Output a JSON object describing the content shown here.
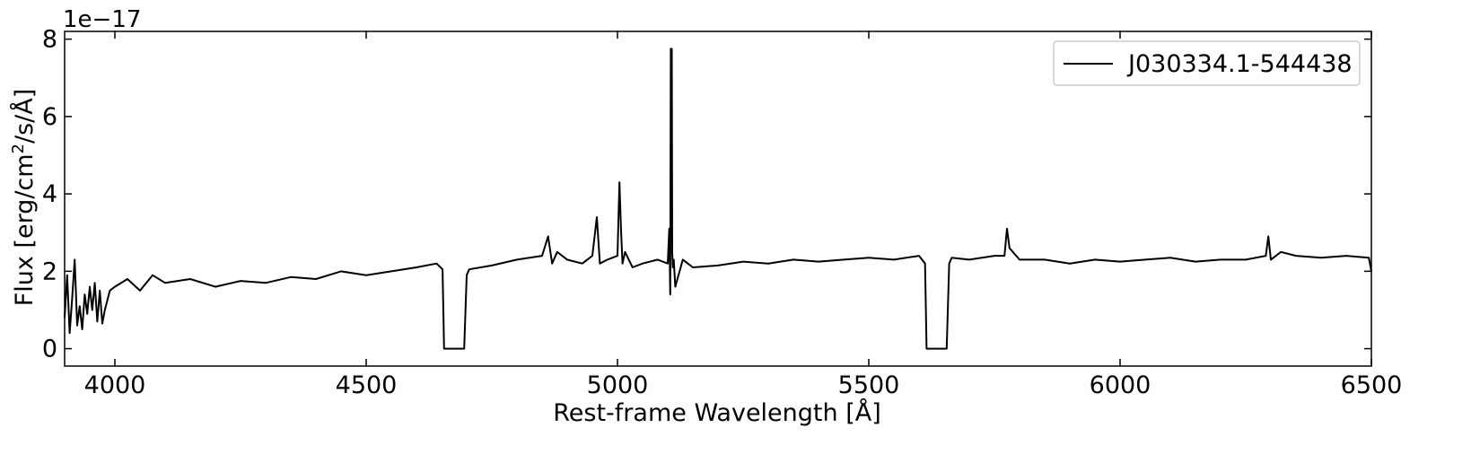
{
  "chart_data": {
    "type": "line",
    "title": "",
    "xlabel": "Rest-frame Wavelength [Å]",
    "ylabel_main": "Flux [erg/cm",
    "ylabel_sup": "2",
    "ylabel_tail": "/s/Å]",
    "offset_text": "1e−17",
    "xlim": [
      3900,
      6500
    ],
    "ylim": [
      -0.45,
      8.2
    ],
    "xticks": [
      4000,
      4500,
      5000,
      5500,
      6000,
      6500
    ],
    "xtick_labels": [
      "4000",
      "4500",
      "5000",
      "5500",
      "6000",
      "6500"
    ],
    "yticks": [
      0,
      2,
      4,
      6,
      8
    ],
    "ytick_labels": [
      "0",
      "2",
      "4",
      "6",
      "8"
    ],
    "grid": false,
    "legend_position": "top-right",
    "line_color": "#000000",
    "series": [
      {
        "name": "J030334.1-544438",
        "x": [
          3900,
          3905,
          3910,
          3915,
          3920,
          3925,
          3930,
          3935,
          3940,
          3945,
          3950,
          3955,
          3960,
          3965,
          3970,
          3975,
          3980,
          3990,
          4000,
          4025,
          4050,
          4075,
          4100,
          4150,
          4200,
          4250,
          4300,
          4350,
          4400,
          4450,
          4500,
          4550,
          4600,
          4640,
          4652,
          4655,
          4695,
          4700,
          4705,
          4750,
          4800,
          4850,
          4862,
          4870,
          4880,
          4900,
          4930,
          4950,
          4959,
          4965,
          4980,
          5000,
          5004,
          5007,
          5010,
          5015,
          5030,
          5050,
          5080,
          5100,
          5103,
          5105,
          5106,
          5107,
          5108,
          5109,
          5110,
          5112,
          5115,
          5130,
          5150,
          5200,
          5250,
          5300,
          5350,
          5400,
          5450,
          5500,
          5550,
          5600,
          5612,
          5615,
          5655,
          5660,
          5665,
          5700,
          5750,
          5770,
          5775,
          5780,
          5800,
          5850,
          5900,
          5950,
          6000,
          6050,
          6100,
          6150,
          6200,
          6250,
          6290,
          6295,
          6300,
          6320,
          6350,
          6400,
          6450,
          6495,
          6500
        ],
        "y": [
          0.8,
          1.9,
          0.4,
          1.3,
          2.3,
          0.6,
          1.1,
          0.5,
          1.4,
          0.9,
          1.6,
          1.0,
          1.7,
          0.7,
          1.5,
          0.65,
          1.0,
          1.5,
          1.6,
          1.8,
          1.5,
          1.9,
          1.7,
          1.8,
          1.6,
          1.75,
          1.7,
          1.85,
          1.8,
          2.0,
          1.9,
          2.0,
          2.1,
          2.2,
          2.05,
          0.0,
          0.0,
          1.9,
          2.05,
          2.15,
          2.3,
          2.4,
          2.9,
          2.2,
          2.5,
          2.3,
          2.2,
          2.4,
          3.4,
          2.2,
          2.3,
          2.4,
          4.3,
          3.1,
          2.2,
          2.5,
          2.1,
          2.2,
          2.3,
          2.2,
          3.1,
          1.4,
          7.75,
          3.3,
          7.75,
          2.5,
          2.1,
          2.3,
          1.6,
          2.3,
          2.1,
          2.15,
          2.25,
          2.2,
          2.3,
          2.25,
          2.3,
          2.35,
          2.3,
          2.4,
          2.2,
          0.0,
          0.0,
          2.2,
          2.35,
          2.3,
          2.4,
          2.4,
          3.1,
          2.6,
          2.3,
          2.3,
          2.2,
          2.3,
          2.25,
          2.3,
          2.35,
          2.25,
          2.3,
          2.3,
          2.4,
          2.9,
          2.3,
          2.5,
          2.4,
          2.35,
          2.4,
          2.35,
          2.0
        ]
      }
    ]
  }
}
